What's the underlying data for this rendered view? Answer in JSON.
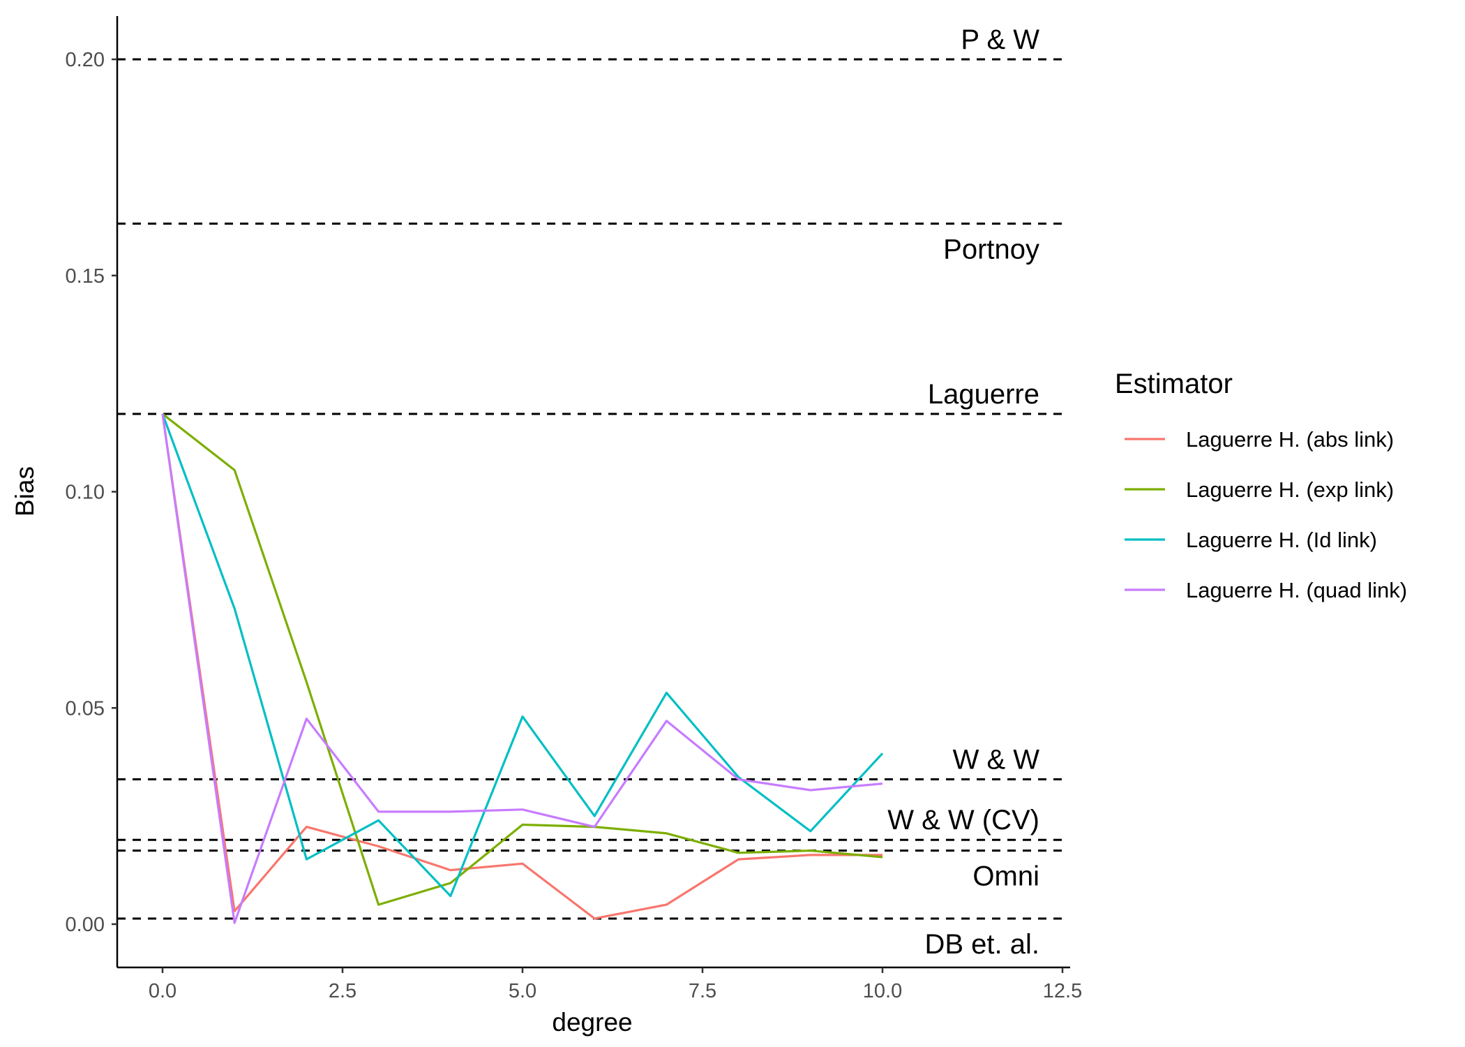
{
  "chart_data": {
    "type": "line",
    "title": "",
    "xlabel": "degree",
    "ylabel": "Bias",
    "xlim": [
      -0.6,
      12.5
    ],
    "ylim": [
      -0.0097,
      0.211
    ],
    "x_ticks": [
      0.0,
      2.5,
      5.0,
      7.5,
      10.0,
      12.5
    ],
    "x_tick_labels": [
      "0.0",
      "2.5",
      "5.0",
      "7.5",
      "10.0",
      "12.5"
    ],
    "y_ticks": [
      0.0,
      0.05,
      0.1,
      0.15,
      0.2
    ],
    "y_tick_labels": [
      "0.00",
      "0.05",
      "0.10",
      "0.15",
      "0.20"
    ],
    "grid": false,
    "legend_title": "Estimator",
    "legend_position": "right",
    "x": [
      0,
      1,
      2,
      3,
      4,
      5,
      6,
      7,
      8,
      9,
      10
    ],
    "series": [
      {
        "name": "Laguerre H. (abs link)",
        "color": "#F8766D",
        "values": [
          0.118,
          0.003,
          0.0225,
          0.018,
          0.0125,
          0.014,
          0.0013,
          0.0045,
          0.015,
          0.016,
          0.016
        ]
      },
      {
        "name": "Laguerre H. (exp link)",
        "color": "#7CAE00",
        "values": [
          0.118,
          0.105,
          0.056,
          0.0045,
          0.0095,
          0.023,
          0.0225,
          0.021,
          0.0165,
          0.017,
          0.0155
        ]
      },
      {
        "name": "Laguerre H. (Id link)",
        "color": "#00BFC4",
        "values": [
          0.118,
          0.073,
          0.015,
          0.024,
          0.0065,
          0.048,
          0.025,
          0.0535,
          0.034,
          0.0215,
          0.0395
        ]
      },
      {
        "name": "Laguerre H. (quad link)",
        "color": "#C77CFF",
        "values": [
          0.118,
          0.0003,
          0.0475,
          0.026,
          0.026,
          0.0265,
          0.0225,
          0.047,
          0.0335,
          0.031,
          0.0325
        ]
      }
    ],
    "reference_lines": [
      {
        "label": "P & W",
        "value": 0.2,
        "label_side": "above"
      },
      {
        "label": "Portnoy",
        "value": 0.162,
        "label_side": "below"
      },
      {
        "label": "Laguerre",
        "value": 0.118,
        "label_side": "above"
      },
      {
        "label": "W & W",
        "value": 0.0335,
        "label_side": "above"
      },
      {
        "label": "W & W (CV)",
        "value": 0.0195,
        "label_side": "above"
      },
      {
        "label": "Omni",
        "value": 0.017,
        "label_side": "below"
      },
      {
        "label": "DB et. al.",
        "value": 0.0013,
        "label_side": "below"
      }
    ]
  }
}
